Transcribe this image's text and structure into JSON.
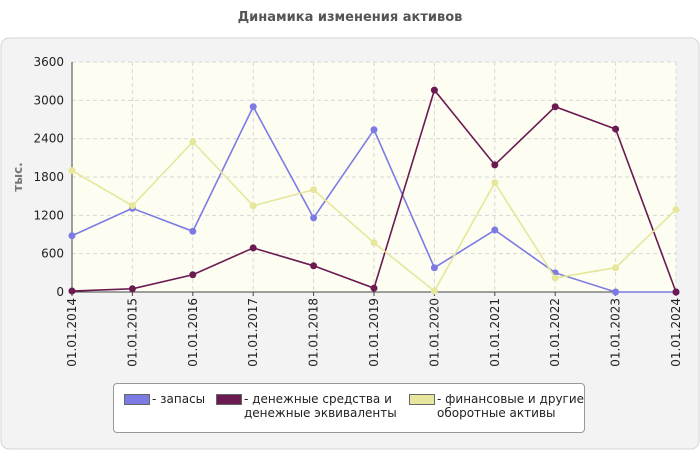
{
  "chart_data": {
    "type": "line",
    "title": "Динамика изменения активов",
    "y_label": "тыс.",
    "categories": [
      "01.01.2014",
      "01.01.2015",
      "01.01.2016",
      "01.01.2017",
      "01.01.2018",
      "01.01.2019",
      "01.01.2020",
      "01.01.2021",
      "01.01.2022",
      "01.01.2023",
      "01.01.2024"
    ],
    "series": [
      {
        "name": "- запасы",
        "color": "#7b7be3",
        "values": [
          880,
          1310,
          950,
          2900,
          1160,
          2540,
          380,
          970,
          300,
          0,
          0
        ]
      },
      {
        "name": "- денежные средства и денежные эквиваленты",
        "color": "#6b1a52",
        "values": [
          15,
          50,
          270,
          690,
          410,
          60,
          3160,
          1990,
          2900,
          2550,
          0
        ]
      },
      {
        "name": "- финансовые и другие оборотные активы",
        "color": "#e6e69c",
        "values": [
          1900,
          1350,
          2350,
          1350,
          1600,
          770,
          15,
          1710,
          220,
          380,
          1290
        ]
      }
    ],
    "ylim": [
      0,
      3600
    ],
    "yticks": [
      0,
      600,
      1200,
      1800,
      2400,
      3000,
      3600
    ],
    "grid": true
  }
}
